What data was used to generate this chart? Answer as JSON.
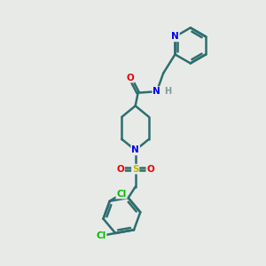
{
  "bg_color": "#e8eae8",
  "bond_color": "#2d6e6e",
  "bond_width": 1.8,
  "atom_colors": {
    "N": "#0000ee",
    "O": "#ee0000",
    "S": "#bbbb00",
    "Cl": "#00bb00",
    "C": "#2d6e6e",
    "H": "#7a9a9a"
  },
  "font_size": 7.5
}
